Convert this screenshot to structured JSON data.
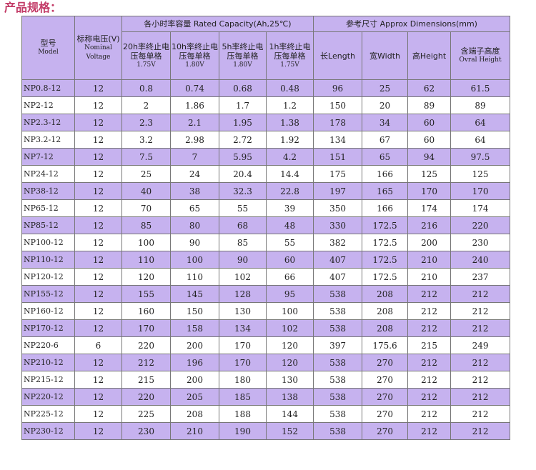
{
  "title": "产品规格：",
  "header": {
    "model_cn": "型号",
    "model_en": "Model",
    "voltage_cn": "标称电压(V)",
    "voltage_en1": "Nominal",
    "voltage_en2": "Voltage",
    "capacity_group": "各小时率容量 Rated Capacity(Ah,25℃)",
    "dimensions_group": "参考尺寸 Approx Dimensions(mm)",
    "cap_cols": [
      {
        "line1": "20h率终止电",
        "line2": "压每单格",
        "line3": "1.75V"
      },
      {
        "line1": "10h率终止电",
        "line2": "压每单格",
        "line3": "1.80V"
      },
      {
        "line1": "5h率终止电",
        "line2": "压每单格",
        "line3": "1.80V"
      },
      {
        "line1": "1h率终止电",
        "line2": "压每单格",
        "line3": "1.75V"
      }
    ],
    "length": "长Length",
    "width": "宽Width",
    "height": "高Height",
    "overall_cn": "含端子高度",
    "overall_en": "Ovral Height"
  },
  "rows": [
    [
      "NP0.8-12",
      "12",
      "0.8",
      "0.74",
      "0.68",
      "0.48",
      "96",
      "25",
      "62",
      "61.5"
    ],
    [
      "NP2-12",
      "12",
      "2",
      "1.86",
      "1.7",
      "1.2",
      "150",
      "20",
      "89",
      "89"
    ],
    [
      "NP2.3-12",
      "12",
      "2.3",
      "2.1",
      "1.95",
      "1.38",
      "178",
      "34",
      "60",
      "64"
    ],
    [
      "NP3.2-12",
      "12",
      "3.2",
      "2.98",
      "2.72",
      "1.92",
      "134",
      "67",
      "60",
      "64"
    ],
    [
      "NP7-12",
      "12",
      "7.5",
      "7",
      "5.95",
      "4.2",
      "151",
      "65",
      "94",
      "97.5"
    ],
    [
      "NP24-12",
      "12",
      "25",
      "24",
      "20.4",
      "14.4",
      "175",
      "166",
      "125",
      "125"
    ],
    [
      "NP38-12",
      "12",
      "40",
      "38",
      "32.3",
      "22.8",
      "197",
      "165",
      "170",
      "170"
    ],
    [
      "NP65-12",
      "12",
      "70",
      "65",
      "55",
      "39",
      "350",
      "166",
      "174",
      "174"
    ],
    [
      "NP85-12",
      "12",
      "85",
      "80",
      "68",
      "48",
      "330",
      "172.5",
      "216",
      "220"
    ],
    [
      "NP100-12",
      "12",
      "100",
      "90",
      "85",
      "55",
      "382",
      "172.5",
      "200",
      "230"
    ],
    [
      "NP110-12",
      "12",
      "110",
      "100",
      "90",
      "60",
      "407",
      "172.5",
      "210",
      "240"
    ],
    [
      "NP120-12",
      "12",
      "120",
      "110",
      "102",
      "66",
      "407",
      "172.5",
      "210",
      "237"
    ],
    [
      "NP155-12",
      "12",
      "155",
      "145",
      "128",
      "95",
      "538",
      "208",
      "212",
      "212"
    ],
    [
      "NP160-12",
      "12",
      "160",
      "150",
      "130",
      "100",
      "538",
      "208",
      "212",
      "212"
    ],
    [
      "NP170-12",
      "12",
      "170",
      "158",
      "134",
      "102",
      "538",
      "208",
      "212",
      "212"
    ],
    [
      "NP220-6",
      "6",
      "220",
      "200",
      "170",
      "120",
      "397",
      "175.6",
      "215",
      "249"
    ],
    [
      "NP210-12",
      "12",
      "212",
      "196",
      "170",
      "120",
      "538",
      "270",
      "212",
      "212"
    ],
    [
      "NP215-12",
      "12",
      "215",
      "200",
      "180",
      "130",
      "538",
      "270",
      "212",
      "212"
    ],
    [
      "NP220-12",
      "12",
      "220",
      "205",
      "185",
      "138",
      "538",
      "270",
      "212",
      "212"
    ],
    [
      "NP225-12",
      "12",
      "225",
      "208",
      "188",
      "144",
      "538",
      "270",
      "212",
      "212"
    ],
    [
      "NP230-12",
      "12",
      "230",
      "210",
      "190",
      "152",
      "538",
      "270",
      "212",
      "212"
    ]
  ]
}
